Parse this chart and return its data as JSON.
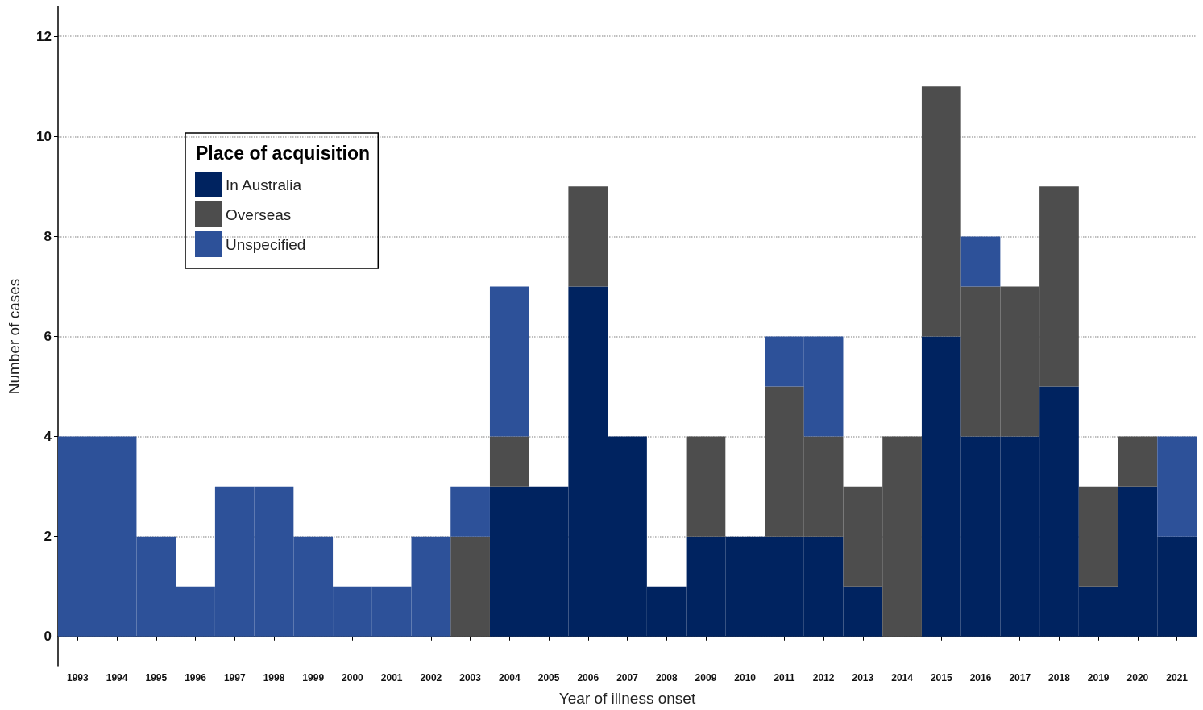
{
  "chart_data": {
    "type": "bar",
    "stacked": true,
    "xlabel": "Year of illness onset",
    "ylabel": "Number of cases",
    "legend_title": "Place of acquisition",
    "legend": "top left",
    "grid": "y",
    "categories": [
      "1993",
      "1994",
      "1995",
      "1996",
      "1997",
      "1998",
      "1999",
      "2000",
      "2001",
      "2002",
      "2003",
      "2004",
      "2005",
      "2006",
      "2007",
      "2008",
      "2009",
      "2010",
      "2011",
      "2012",
      "2013",
      "2014",
      "2015",
      "2016",
      "2017",
      "2018",
      "2019",
      "2020",
      "2021"
    ],
    "series": [
      {
        "name": "In Australia",
        "color": "#002360",
        "values": [
          0,
          0,
          0,
          0,
          0,
          0,
          0,
          0,
          0,
          0,
          0,
          3,
          3,
          7,
          4,
          1,
          2,
          2,
          2,
          2,
          1,
          0,
          6,
          4,
          4,
          5,
          1,
          3,
          2
        ]
      },
      {
        "name": "Overseas",
        "color": "#4d4d4d",
        "values": [
          0,
          0,
          0,
          0,
          0,
          0,
          0,
          0,
          0,
          0,
          2,
          1,
          0,
          2,
          0,
          0,
          2,
          0,
          3,
          2,
          2,
          4,
          5,
          3,
          3,
          4,
          2,
          1,
          0
        ]
      },
      {
        "name": "Unspecified",
        "color": "#2d5199",
        "values": [
          4,
          4,
          2,
          1,
          3,
          3,
          2,
          1,
          1,
          2,
          1,
          3,
          0,
          0,
          0,
          0,
          0,
          0,
          1,
          2,
          0,
          0,
          0,
          1,
          0,
          0,
          0,
          0,
          2
        ]
      }
    ],
    "ylim": [
      -0.6,
      12.6
    ],
    "yticks": [
      0,
      2,
      4,
      6,
      8,
      10,
      12
    ]
  }
}
